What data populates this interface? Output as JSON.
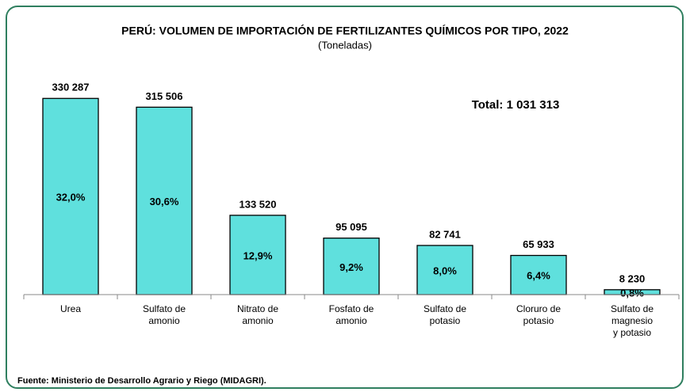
{
  "chart_data": {
    "type": "bar",
    "title": "PERÚ: VOLUMEN DE IMPORTACIÓN DE FERTILIZANTES QUÍMICOS POR TIPO, 2022",
    "subtitle": "(Toneladas)",
    "categories": [
      [
        "Urea"
      ],
      [
        "Sulfato de",
        "amonio"
      ],
      [
        "Nitrato de",
        "amonio"
      ],
      [
        "Fosfato de",
        "amonio"
      ],
      [
        "Sulfato de",
        "potasio"
      ],
      [
        "Cloruro de",
        "potasio"
      ],
      [
        "Sulfato de",
        "magnesio",
        "y potasio"
      ]
    ],
    "values": [
      330287,
      315506,
      133520,
      95095,
      82741,
      65933,
      8230
    ],
    "value_labels": [
      "330 287",
      "315 506",
      "133 520",
      "95 095",
      "82 741",
      "65 933",
      "8 230"
    ],
    "share_values": [
      32.0,
      30.6,
      12.9,
      9.2,
      8.0,
      6.4,
      0.8
    ],
    "share_labels": [
      "32,0%",
      "30,6%",
      "12,9%",
      "9,2%",
      "8,0%",
      "6,4%",
      "0,8%"
    ],
    "color": "#5fe0dd",
    "ylim": [
      0,
      400000
    ],
    "annotation": "Total: 1 031 313",
    "source": "Fuente: Ministerio de Desarrollo Agrario y Riego (MIDAGRI)."
  }
}
